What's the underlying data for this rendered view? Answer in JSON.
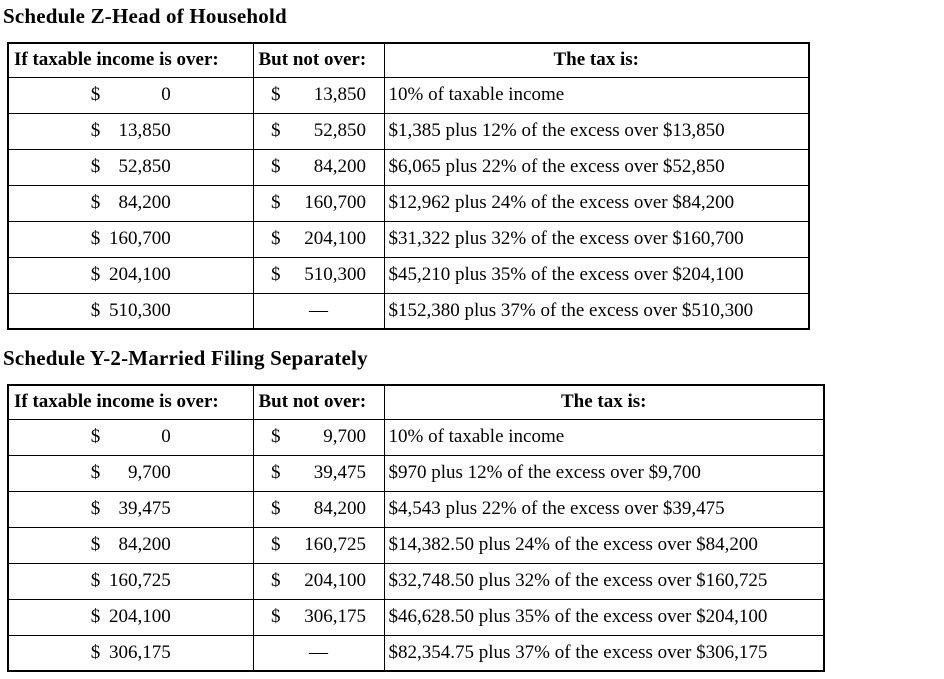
{
  "colors": {
    "background": "#ffffff",
    "text": "#000000",
    "border": "#000000"
  },
  "tables": [
    {
      "title": "Schedule Z-Head of Household",
      "headers": [
        "If taxable income is over:",
        "But not over:",
        "The tax is:"
      ],
      "rows": [
        {
          "over": {
            "sym": "$",
            "amt": "0"
          },
          "not_over": {
            "sym": "$",
            "amt": "13,850"
          },
          "tax": "10% of taxable income"
        },
        {
          "over": {
            "sym": "$",
            "amt": "13,850"
          },
          "not_over": {
            "sym": "$",
            "amt": "52,850"
          },
          "tax": "$1,385 plus 12% of the excess over $13,850"
        },
        {
          "over": {
            "sym": "$",
            "amt": "52,850"
          },
          "not_over": {
            "sym": "$",
            "amt": "84,200"
          },
          "tax": "$6,065 plus 22% of the excess over $52,850"
        },
        {
          "over": {
            "sym": "$",
            "amt": "84,200"
          },
          "not_over": {
            "sym": "$",
            "amt": "160,700"
          },
          "tax": "$12,962 plus 24% of the excess over $84,200"
        },
        {
          "over": {
            "sym": "$",
            "amt": "160,700"
          },
          "not_over": {
            "sym": "$",
            "amt": "204,100"
          },
          "tax": "$31,322 plus 32% of the excess over $160,700"
        },
        {
          "over": {
            "sym": "$",
            "amt": "204,100"
          },
          "not_over": {
            "sym": "$",
            "amt": "510,300"
          },
          "tax": "$45,210 plus 35% of the excess over $204,100"
        },
        {
          "over": {
            "sym": "$",
            "amt": "510,300"
          },
          "not_over": {
            "sym": "",
            "amt": "—"
          },
          "tax": "$152,380 plus 37% of the excess over $510,300"
        }
      ]
    },
    {
      "title": "Schedule Y-2-Married Filing Separately",
      "headers": [
        "If taxable income is over:",
        "But not over:",
        "The tax is:"
      ],
      "rows": [
        {
          "over": {
            "sym": "$",
            "amt": "0"
          },
          "not_over": {
            "sym": "$",
            "amt": "9,700"
          },
          "tax": "10% of taxable income"
        },
        {
          "over": {
            "sym": "$",
            "amt": "9,700"
          },
          "not_over": {
            "sym": "$",
            "amt": "39,475"
          },
          "tax": "$970 plus 12% of the excess over $9,700"
        },
        {
          "over": {
            "sym": "$",
            "amt": "39,475"
          },
          "not_over": {
            "sym": "$",
            "amt": "84,200"
          },
          "tax": "$4,543 plus 22% of the excess over $39,475"
        },
        {
          "over": {
            "sym": "$",
            "amt": "84,200"
          },
          "not_over": {
            "sym": "$",
            "amt": "160,725"
          },
          "tax": "$14,382.50 plus 24% of the excess over $84,200"
        },
        {
          "over": {
            "sym": "$",
            "amt": "160,725"
          },
          "not_over": {
            "sym": "$",
            "amt": "204,100"
          },
          "tax": "$32,748.50 plus 32% of the excess over $160,725"
        },
        {
          "over": {
            "sym": "$",
            "amt": "204,100"
          },
          "not_over": {
            "sym": "$",
            "amt": "306,175"
          },
          "tax": "$46,628.50 plus 35% of the excess over $204,100"
        },
        {
          "over": {
            "sym": "$",
            "amt": "306,175"
          },
          "not_over": {
            "sym": "",
            "amt": "—"
          },
          "tax": "$82,354.75 plus 37% of the excess over $306,175"
        }
      ]
    }
  ]
}
